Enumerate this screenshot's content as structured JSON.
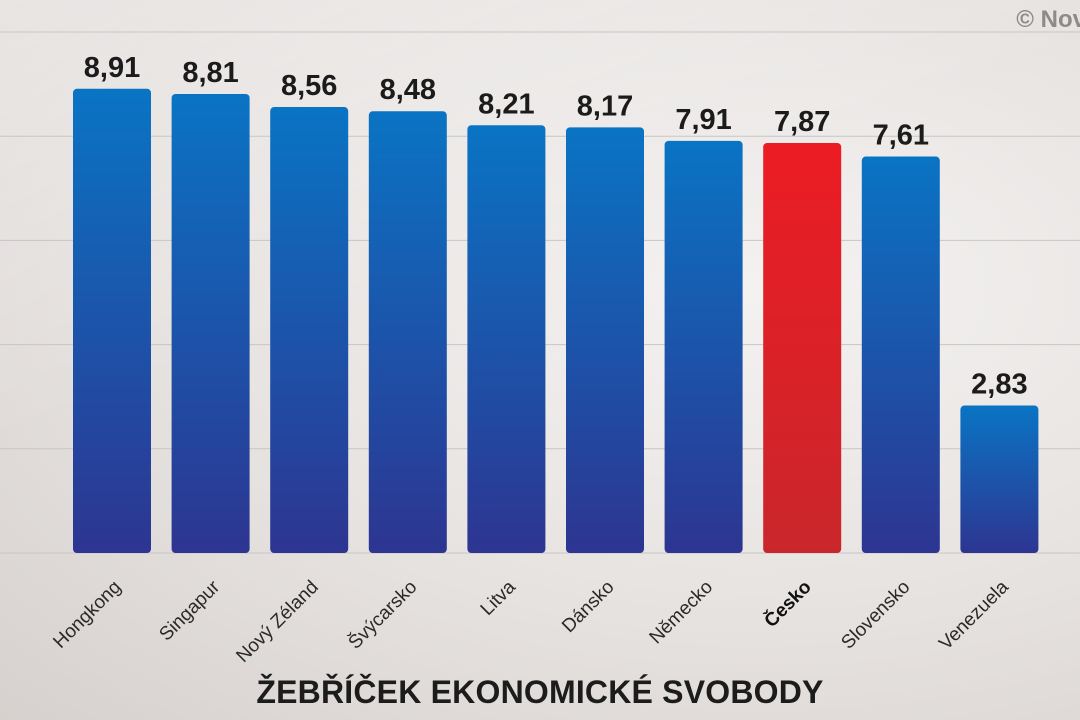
{
  "credit": "© Nov",
  "chart_data": {
    "type": "bar",
    "title": "ŽEBŘÍČEK EKONOMICKÉ SVOBODY",
    "xlabel": "",
    "ylabel": "",
    "categories": [
      "Hongkong",
      "Singapur",
      "Nový Zéland",
      "Švýcarsko",
      "Litva",
      "Dánsko",
      "Německo",
      "Česko",
      "Slovensko",
      "Venezuela"
    ],
    "values": [
      8.91,
      8.81,
      8.56,
      8.48,
      8.21,
      8.17,
      7.91,
      7.87,
      7.61,
      2.83
    ],
    "value_labels": [
      "8,91",
      "8,81",
      "8,56",
      "8,48",
      "8,21",
      "8,17",
      "7,91",
      "7,87",
      "7,61",
      "2,83"
    ],
    "highlight": "Česko",
    "ylim": [
      0,
      10
    ],
    "grid": true,
    "colors": {
      "bar": "#2b3d9c",
      "bar_top": "#1f6fc0",
      "highlight": "#e01f26",
      "text": "#1b1b1b",
      "grid": "#c9c5c3"
    }
  }
}
